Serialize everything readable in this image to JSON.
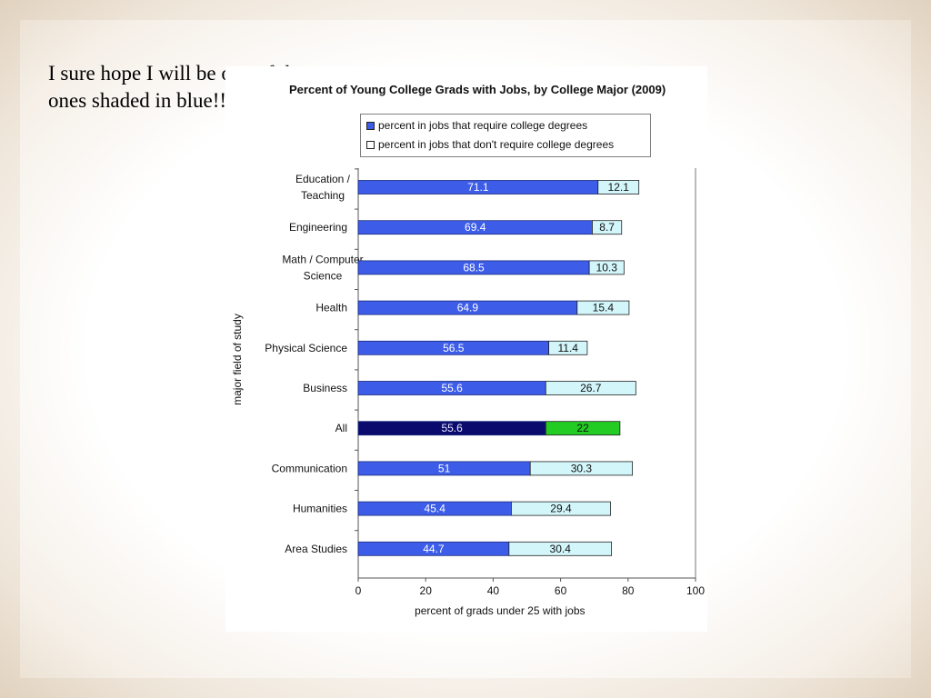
{
  "caption": "I sure hope I will be one of the ones shaded in blue!!",
  "chart_data": {
    "type": "bar",
    "stacked": true,
    "orientation": "horizontal",
    "title": "Percent of Young College Grads with Jobs, by College Major (2009)",
    "xlabel": "percent of grads under 25 with jobs",
    "ylabel": "major field of study",
    "xlim": [
      0,
      100
    ],
    "xticks": [
      0,
      20,
      40,
      60,
      80,
      100
    ],
    "grid": false,
    "legend_position": "top",
    "categories": [
      [
        "Education /",
        "Teaching"
      ],
      [
        "Engineering"
      ],
      [
        "Math / Computer",
        "Science"
      ],
      [
        "Health"
      ],
      [
        "Physical Science"
      ],
      [
        "Business"
      ],
      [
        "All"
      ],
      [
        "Communication"
      ],
      [
        "Humanities"
      ],
      [
        "Area Studies"
      ]
    ],
    "series": [
      {
        "name": "percent in jobs that require college degrees",
        "color": "#3d5de8",
        "highlight_color": "#0b0b6e",
        "values": [
          71.1,
          69.4,
          68.5,
          64.9,
          56.5,
          55.6,
          55.6,
          51,
          45.4,
          44.7
        ],
        "labels": [
          "71.1",
          "69.4",
          "68.5",
          "64.9",
          "56.5",
          "55.6",
          "55.6",
          "51",
          "45.4",
          "44.7"
        ]
      },
      {
        "name": "percent in jobs that don't require college degrees",
        "color": "#d3f6fb",
        "highlight_color": "#22cc22",
        "values": [
          12.1,
          8.7,
          10.3,
          15.4,
          11.4,
          26.7,
          22,
          30.3,
          29.4,
          30.4
        ],
        "labels": [
          "12.1",
          "8.7",
          "10.3",
          "15.4",
          "11.4",
          "26.7",
          "22",
          "30.3",
          "29.4",
          "30.4"
        ]
      }
    ],
    "highlight_category_index": 6
  }
}
